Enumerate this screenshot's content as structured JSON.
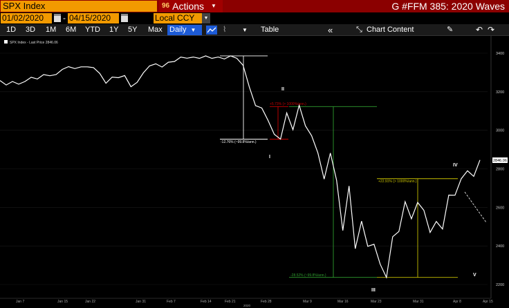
{
  "header": {
    "ticker": "SPX Index",
    "actions_number": "96",
    "actions_label": "Actions",
    "page_title": "G #FFM 385: 2020 Waves"
  },
  "date_range": {
    "start": "01/02/2020",
    "end": "04/15/2020",
    "separator": "-"
  },
  "currency": "Local CCY",
  "toolbar": {
    "periods": [
      "1D",
      "3D",
      "1M",
      "6M",
      "YTD",
      "1Y",
      "5Y",
      "Max"
    ],
    "frequency": "Daily",
    "table_label": "Table",
    "chart_content_label": "Chart Content"
  },
  "chart_data": {
    "type": "line",
    "legend": "SPX Index - Last Price 2846.06",
    "last_price_tag": "2846.06",
    "y_ticks": [
      "3400",
      "3200",
      "3000",
      "2800",
      "2600",
      "2400",
      "2200"
    ],
    "ylim": [
      2150,
      3450
    ],
    "x_ticks": [
      "Jan 7",
      "Jan 15",
      "Jan 22",
      "Jan 31",
      "Feb 7",
      "Feb 14",
      "Feb 21",
      "Feb 28",
      "Mar 9",
      "Mar 16",
      "Mar 23",
      "Mar 31",
      "Apr 8",
      "Apr 15"
    ],
    "year_label": "2020",
    "series": [
      {
        "values": [
          3258,
          3235,
          3253,
          3239,
          3253,
          3275,
          3266,
          3289,
          3283,
          3289,
          3316,
          3330,
          3320,
          3329,
          3329,
          3325,
          3295,
          3244,
          3276,
          3273,
          3284,
          3226,
          3249,
          3298,
          3334,
          3345,
          3328,
          3353,
          3357,
          3380,
          3374,
          3380,
          3373,
          3386,
          3373,
          3380,
          3370,
          3386,
          3373,
          3337,
          3225,
          3128,
          3116,
          3051,
          2979,
          2954,
          3090,
          3003,
          3130,
          3023,
          2972,
          2882,
          2747,
          2882,
          2741,
          2480,
          2711,
          2386,
          2529,
          2398,
          2409,
          2305,
          2237,
          2448,
          2475,
          2630,
          2541,
          2626,
          2585,
          2470,
          2527,
          2488,
          2664,
          2663,
          2749,
          2790,
          2761,
          2846
        ]
      }
    ],
    "annotations": {
      "wave_labels": [
        "I",
        "II",
        "III",
        "IV",
        "V"
      ],
      "measure_1": "-12.76% (~99.8%/ann.)",
      "measure_2": "+5.73% (> 1000%/ann.)",
      "measure_3": "-28.52% (~99.8%/ann.)",
      "measure_4": "+22.91% (> 1000%/ann.)"
    },
    "colors": {
      "line": "#ffffff",
      "measure_white": "#ffffff",
      "measure_red": "#cc0000",
      "measure_green": "#2f9e2f",
      "measure_yellow": "#c8c000"
    }
  }
}
